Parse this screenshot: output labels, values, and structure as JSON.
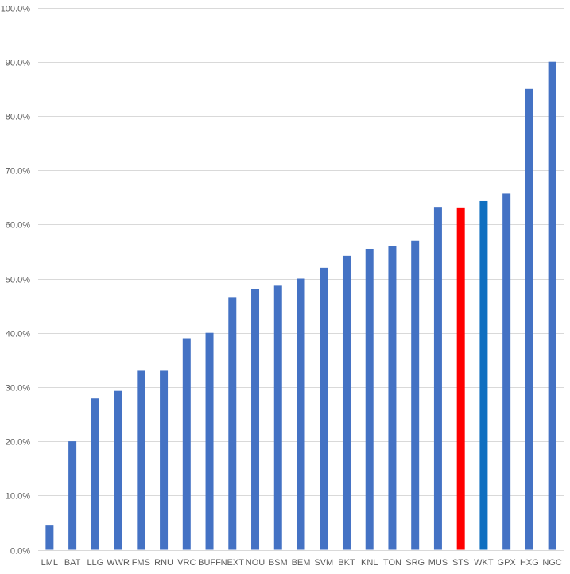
{
  "chart_data": {
    "type": "bar",
    "title": "",
    "xlabel": "",
    "ylabel": "",
    "ylim": [
      0,
      100
    ],
    "y_ticks": [
      0,
      10,
      20,
      30,
      40,
      50,
      60,
      70,
      80,
      90,
      100
    ],
    "y_tick_labels": [
      "0.0%",
      "10.0%",
      "20.0%",
      "30.0%",
      "40.0%",
      "50.0%",
      "60.0%",
      "70.0%",
      "80.0%",
      "90.0%",
      "100.0%"
    ],
    "grid": true,
    "legend": "none",
    "categories": [
      "LML",
      "BAT",
      "LLG",
      "WWR",
      "FMS",
      "RNU",
      "VRC",
      "BUFF",
      "NEXT",
      "NOU",
      "BSM",
      "BEM",
      "SVM",
      "BKT",
      "KNL",
      "TON",
      "SRG",
      "MUS",
      "STS",
      "WKT",
      "GPX",
      "HXG",
      "NGC"
    ],
    "values": [
      4.6,
      20.0,
      27.9,
      29.3,
      33.0,
      33.0,
      39.0,
      40.0,
      46.5,
      48.1,
      48.7,
      50.0,
      52.0,
      54.2,
      55.5,
      56.0,
      57.0,
      63.1,
      63.0,
      64.3,
      65.7,
      85.0,
      90.0
    ],
    "colors": {
      "default": "#4472c4",
      "STS": "#ff0000",
      "WKT": "#0f6fc0"
    }
  }
}
